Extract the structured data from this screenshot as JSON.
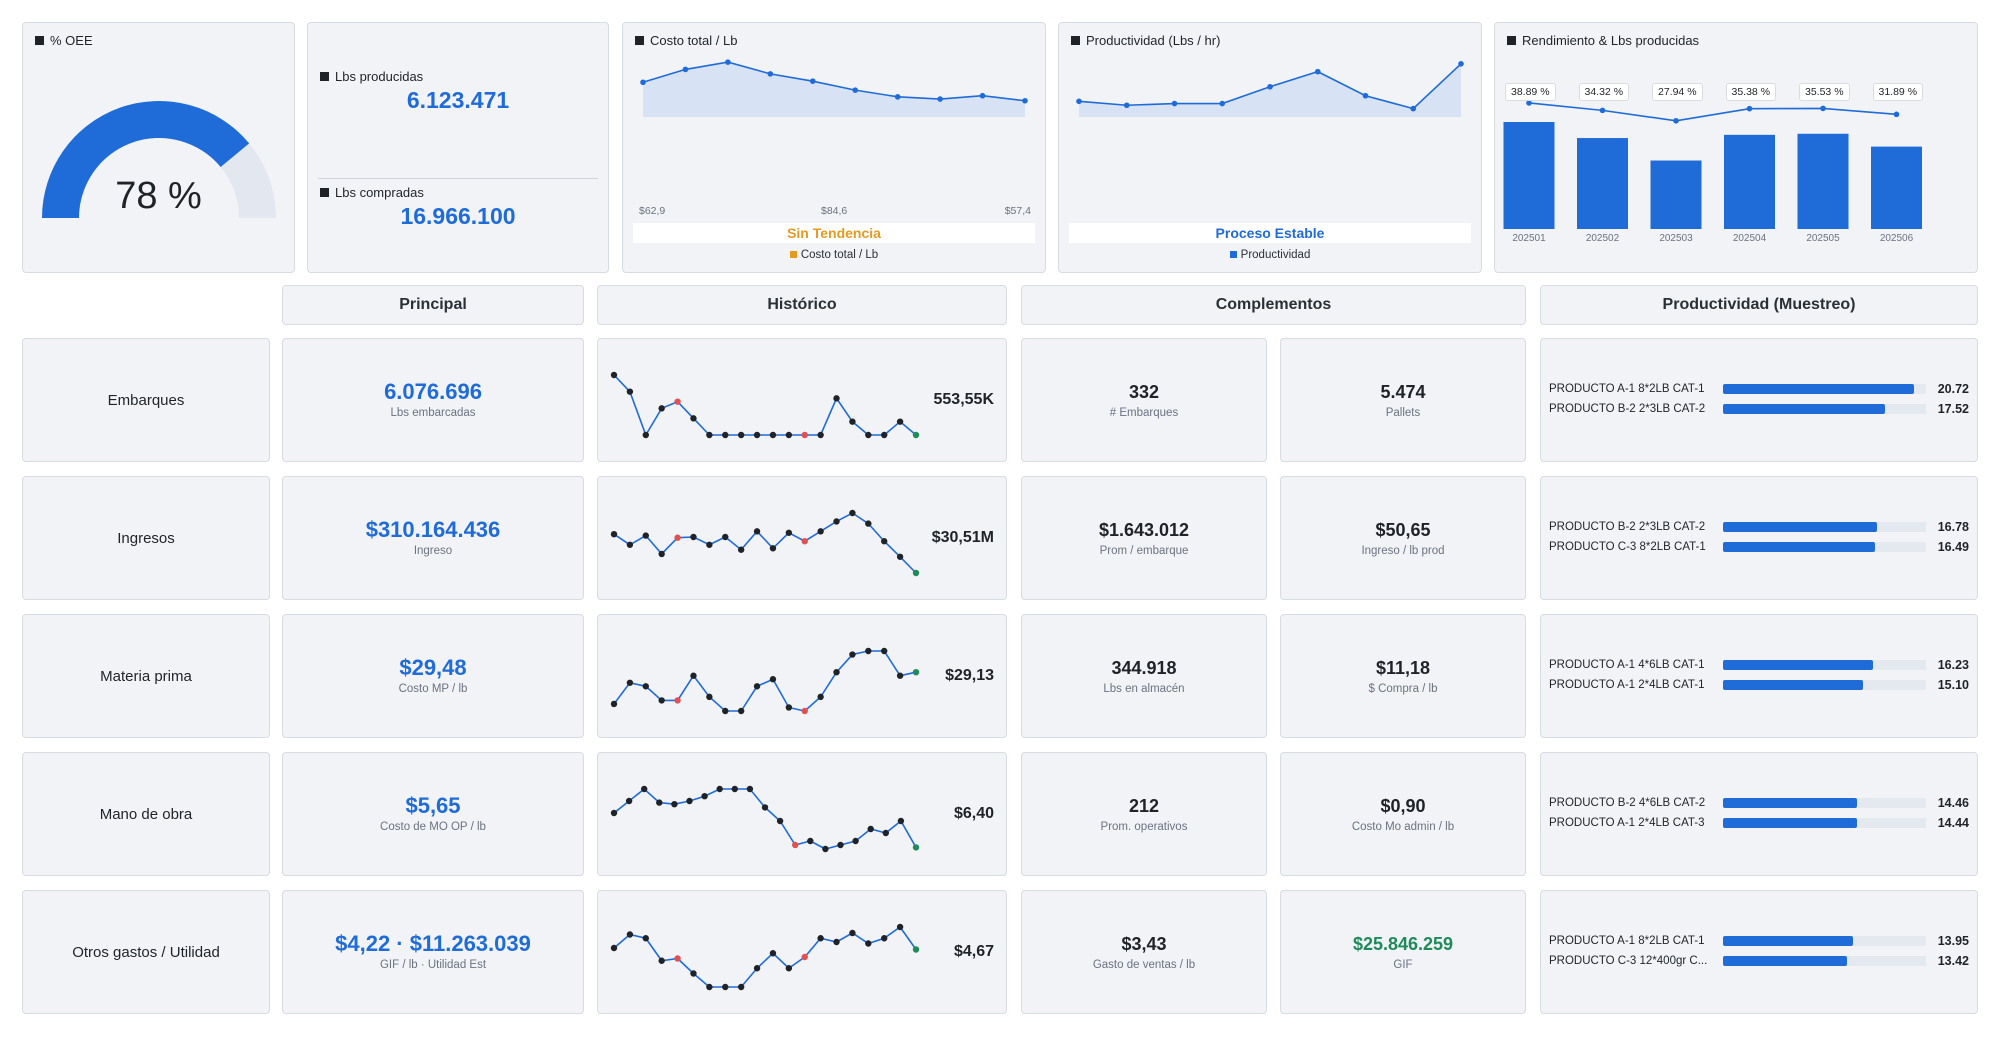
{
  "colors": {
    "accent": "#1f6bd8",
    "orange": "#e59a1f",
    "green": "#1f8a5a",
    "red": "#e05252",
    "dark": "#1f2328"
  },
  "oee": {
    "title": "% OEE",
    "value": "78 %",
    "fraction": 0.78
  },
  "lbs": {
    "produced_label": "Lbs producidas",
    "produced_value": "6.123.471",
    "purchased_label": "Lbs compradas",
    "purchased_value": "16.966.100"
  },
  "cost_chart": {
    "title": "Costo total / Lb",
    "x_labels": [
      "$62,9",
      "$84,6",
      "$57,4"
    ],
    "status": "Sin Tendencia",
    "legend": "Costo total / Lb",
    "chart_data": {
      "type": "area",
      "values": [
        0.62,
        0.85,
        0.98,
        0.77,
        0.64,
        0.48,
        0.36,
        0.32,
        0.38,
        0.29
      ],
      "title": "Costo total / Lb"
    }
  },
  "prod_chart": {
    "title": "Productividad (Lbs / hr)",
    "status": "Proceso Estable",
    "legend": "Productividad",
    "chart_data": {
      "type": "area",
      "values": [
        0.28,
        0.21,
        0.24,
        0.24,
        0.54,
        0.81,
        0.38,
        0.15,
        0.95
      ],
      "title": "Productividad (Lbs / hr)"
    }
  },
  "yield_chart": {
    "title": "Rendimiento & Lbs producidas",
    "chart_data": {
      "type": "bar",
      "categories": [
        "202501",
        "202502",
        "202503",
        "202504",
        "202505",
        "202506"
      ],
      "series": [
        {
          "values": [
            1.0,
            0.85,
            0.64,
            0.88,
            0.89,
            0.77
          ]
        },
        {
          "values": [
            38.89,
            34.32,
            27.94,
            35.38,
            35.53,
            31.89
          ]
        }
      ],
      "line_labels": [
        "38.89 %",
        "34.32 %",
        "27.94 %",
        "35.38 %",
        "35.53 %",
        "31.89 %"
      ]
    }
  },
  "headers": {
    "principal": "Principal",
    "historico": "Histórico",
    "complementos": "Complementos",
    "productividad": "Productividad (Muestreo)"
  },
  "rows": [
    {
      "label": "Embarques",
      "main_value": "6.076.696",
      "main_sub": "Lbs embarcadas",
      "main_color": "#1f6bd8",
      "hist_value": "553,55K",
      "hist": [
        0.95,
        0.7,
        0.05,
        0.45,
        0.55,
        0.3,
        0.05,
        0.05,
        0.05,
        0.05,
        0.05,
        0.05,
        0.05,
        0.05,
        0.6,
        0.25,
        0.05,
        0.05,
        0.25,
        0.05
      ],
      "hist_red": [
        4,
        12
      ],
      "c1_value": "332",
      "c1_sub": "# Embarques",
      "c1_color": "#1f2328",
      "c2_value": "5.474",
      "c2_sub": "Pallets",
      "c2_color": "#1f2328",
      "products": [
        {
          "name": "PRODUCTO A-1 8*2LB CAT-1",
          "value": "20.72",
          "fraction": 0.94
        },
        {
          "name": "PRODUCTO B-2 2*3LB CAT-2",
          "value": "17.52",
          "fraction": 0.8
        }
      ]
    },
    {
      "label": "Ingresos",
      "main_value": "$310.164.436",
      "main_sub": "Ingreso",
      "main_color": "#1f6bd8",
      "hist_value": "$30,51M",
      "hist": [
        0.7,
        0.55,
        0.68,
        0.42,
        0.65,
        0.66,
        0.55,
        0.66,
        0.48,
        0.74,
        0.5,
        0.72,
        0.6,
        0.74,
        0.88,
        1.0,
        0.85,
        0.6,
        0.38,
        0.15
      ],
      "hist_red": [
        4,
        12
      ],
      "c1_value": "$1.643.012",
      "c1_sub": "Prom / embarque",
      "c1_color": "#1f2328",
      "c2_value": "$50,65",
      "c2_sub": "Ingreso / lb prod",
      "c2_color": "#1f2328",
      "products": [
        {
          "name": "PRODUCTO B-2 2*3LB CAT-2",
          "value": "16.78",
          "fraction": 0.76
        },
        {
          "name": "PRODUCTO C-3 8*2LB CAT-1",
          "value": "16.49",
          "fraction": 0.75
        }
      ]
    },
    {
      "label": "Materia prima",
      "main_value": "$29,48",
      "main_sub": "Costo MP / lb",
      "main_color": "#1f6bd8",
      "hist_value": "$29,13",
      "hist": [
        0.0,
        0.3,
        0.25,
        0.05,
        0.05,
        0.4,
        0.1,
        -0.1,
        -0.1,
        0.25,
        0.35,
        -0.05,
        -0.1,
        0.1,
        0.45,
        0.7,
        0.75,
        0.75,
        0.4,
        0.45
      ],
      "hist_red": [
        4,
        12
      ],
      "c1_value": "344.918",
      "c1_sub": "Lbs en almacén",
      "c1_color": "#1f2328",
      "c2_value": "$11,18",
      "c2_sub": "$ Compra / lb",
      "c2_color": "#1f2328",
      "products": [
        {
          "name": "PRODUCTO A-1 4*6LB CAT-1",
          "value": "16.23",
          "fraction": 0.74
        },
        {
          "name": "PRODUCTO A-1 2*4LB CAT-1",
          "value": "15.10",
          "fraction": 0.69
        }
      ]
    },
    {
      "label": "Mano de obra",
      "main_value": "$5,65",
      "main_sub": "Costo de MO OP / lb",
      "main_color": "#1f6bd8",
      "hist_value": "$6,40",
      "hist": [
        0.65,
        0.8,
        0.95,
        0.78,
        0.76,
        0.8,
        0.86,
        0.95,
        0.95,
        0.95,
        0.72,
        0.55,
        0.25,
        0.3,
        0.2,
        0.25,
        0.3,
        0.45,
        0.4,
        0.55,
        0.22
      ],
      "hist_red": [
        12
      ],
      "c1_value": "212",
      "c1_sub": "Prom. operativos",
      "c1_color": "#1f2328",
      "c2_value": "$0,90",
      "c2_sub": "Costo Mo admin / lb",
      "c2_color": "#1f2328",
      "products": [
        {
          "name": "PRODUCTO B-2 4*6LB CAT-2",
          "value": "14.46",
          "fraction": 0.66
        },
        {
          "name": "PRODUCTO A-1 2*4LB CAT-3",
          "value": "14.44",
          "fraction": 0.66
        }
      ]
    },
    {
      "label": "Otros gastos / Utilidad",
      "main_value": "$4,22 · $11.263.039",
      "main_sub": "GIF / lb · Utilidad Est",
      "main_color": "#1f6bd8",
      "hist_value": "$4,67",
      "hist": [
        0.62,
        0.8,
        0.75,
        0.45,
        0.48,
        0.28,
        0.1,
        0.1,
        0.1,
        0.35,
        0.55,
        0.35,
        0.5,
        0.75,
        0.7,
        0.82,
        0.68,
        0.75,
        0.9,
        0.6
      ],
      "hist_red": [
        4,
        12
      ],
      "c1_value": "$3,43",
      "c1_sub": "Gasto de ventas / lb",
      "c1_color": "#1f2328",
      "c2_value": "$25.846.259",
      "c2_sub": "GIF",
      "c2_color": "#1f8a5a",
      "products": [
        {
          "name": "PRODUCTO A-1 8*2LB CAT-1",
          "value": "13.95",
          "fraction": 0.64
        },
        {
          "name": "PRODUCTO C-3 12*400gr C...",
          "value": "13.42",
          "fraction": 0.61
        }
      ]
    }
  ]
}
